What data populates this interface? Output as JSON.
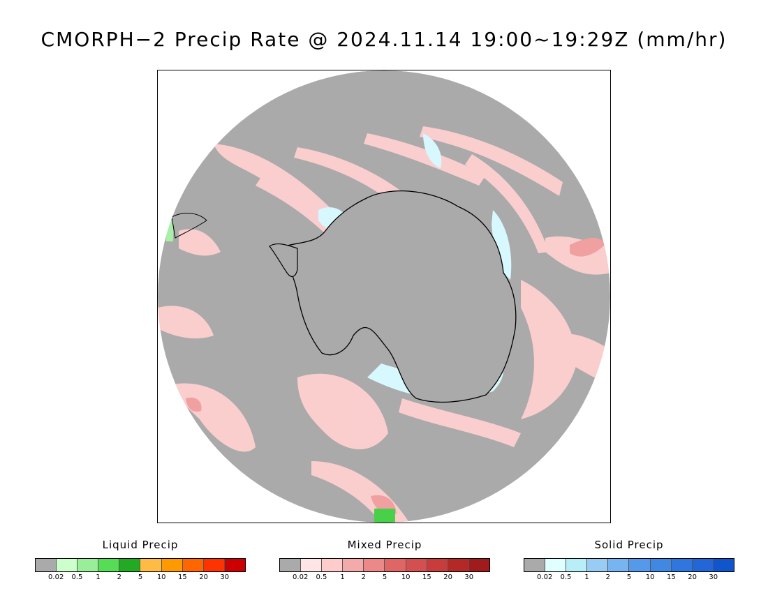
{
  "title": "CMORPH−2 Precip Rate @ 2024.11.14 19:00~19:29Z (mm/hr)",
  "map": {
    "projection": "south-polar-stereographic",
    "region": "Antarctica",
    "background_color": "#aaaaaa",
    "coastline_color": "#000000",
    "categories": {
      "liquid_light": "#a8f0a8",
      "liquid_green": "#48d048",
      "mixed_light": "#ffd0d0",
      "mixed_medium": "#f0a0a0",
      "solid_light": "#d8f8ff"
    }
  },
  "legends": [
    {
      "title": "Liquid Precip",
      "colors": [
        "#aaaaaa",
        "#ccffcc",
        "#99ee99",
        "#55dd55",
        "#22aa22",
        "#ffbb44",
        "#ff9900",
        "#ff6600",
        "#ff3300",
        "#cc0000"
      ],
      "ticks": [
        "0.02",
        "0.5",
        "1",
        "2",
        "5",
        "10",
        "15",
        "20",
        "30"
      ]
    },
    {
      "title": "Mixed Precip",
      "colors": [
        "#aaaaaa",
        "#ffe5e5",
        "#ffcccc",
        "#f4aaaa",
        "#ec8888",
        "#e06666",
        "#d45050",
        "#c83c3c",
        "#b42828",
        "#a01c1c"
      ],
      "ticks": [
        "0.02",
        "0.5",
        "1",
        "2",
        "5",
        "10",
        "15",
        "20",
        "30"
      ]
    },
    {
      "title": "Solid Precip",
      "colors": [
        "#aaaaaa",
        "#e0ffff",
        "#b8eef8",
        "#99ccf4",
        "#77b4f0",
        "#5599ea",
        "#3f88e4",
        "#2f77de",
        "#2266d8",
        "#1155cc"
      ],
      "ticks": [
        "0.02",
        "0.5",
        "1",
        "2",
        "5",
        "10",
        "15",
        "20",
        "30"
      ]
    }
  ]
}
